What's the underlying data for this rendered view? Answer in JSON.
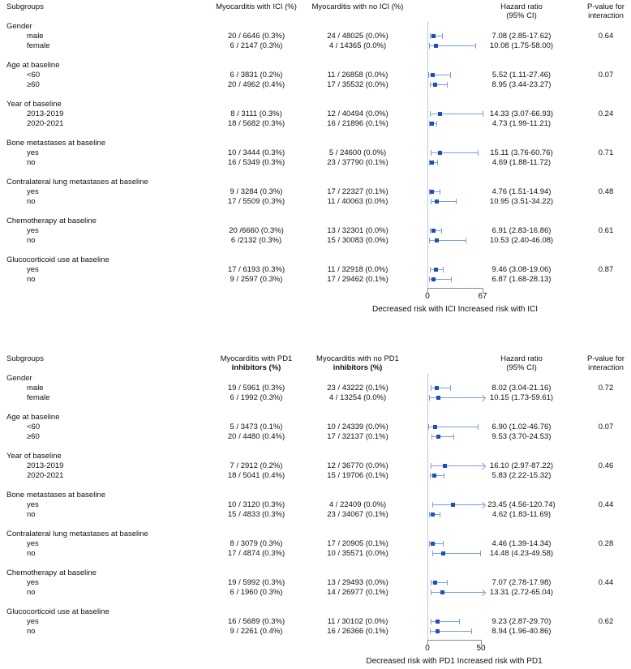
{
  "colors": {
    "marker_blue": "#1d4fb5",
    "whisker_blue": "#7b9fd9",
    "spine_gray": "#c4c8ce",
    "axis_gray": "#8a8a8a"
  },
  "chart_data": [
    {
      "type": "forest",
      "columns": {
        "subgroups": "Subgroups",
        "arm1": [
          "Myocarditis with ICI (%)"
        ],
        "arm2": [
          "Myocarditis with no ICI (%)"
        ],
        "hr": [
          "Hazard ratio",
          "(95% CI)"
        ],
        "p": [
          "P-value for",
          "interaction"
        ]
      },
      "axis": {
        "min": 0,
        "max": 67,
        "ticks": [
          0,
          67
        ],
        "tick_labels": [
          "0",
          "67"
        ],
        "caption": "Decreased risk with ICI Increased risk with ICI"
      },
      "groups": [
        {
          "label": "Gender",
          "rows": [
            {
              "label": "male",
              "arm1": "20 / 6646 (0.3%)",
              "arm2": "24 / 48025 (0.0%)",
              "hr": 7.08,
              "lo": 2.85,
              "hi": 17.62,
              "hr_text": "7.08 (2.85-17.62)",
              "p": "0.64"
            },
            {
              "label": "female",
              "arm1": "6 / 2147 (0.3%)",
              "arm2": "4 / 14365 (0.0%)",
              "hr": 10.08,
              "lo": 1.75,
              "hi": 58.0,
              "hr_text": "10.08 (1.75-58.00)",
              "p": ""
            }
          ]
        },
        {
          "label": "Age at baseline",
          "rows": [
            {
              "label": "<60",
              "arm1": "6 / 3831 (0.2%)",
              "arm2": "11 / 26858 (0.0%)",
              "hr": 5.52,
              "lo": 1.11,
              "hi": 27.46,
              "hr_text": "5.52 (1.11-27.46)",
              "p": "0.07"
            },
            {
              "label": "≥60",
              "arm1": "20 / 4962 (0.4%)",
              "arm2": "17 / 35532 (0.0%)",
              "hr": 8.95,
              "lo": 3.44,
              "hi": 23.27,
              "hr_text": "8.95 (3.44-23.27)",
              "p": ""
            }
          ]
        },
        {
          "label": "Year of baseline",
          "rows": [
            {
              "label": "2013-2019",
              "arm1": "8 / 3111 (0.3%)",
              "arm2": "12 / 40494 (0.0%)",
              "hr": 14.33,
              "lo": 3.07,
              "hi": 66.93,
              "hr_text": "14.33 (3.07-66.93)",
              "p": "0.24"
            },
            {
              "label": "2020-2021",
              "arm1": "18 / 5682 (0.3%)",
              "arm2": "16 / 21896 (0.1%)",
              "hr": 4.73,
              "lo": 1.99,
              "hi": 11.21,
              "hr_text": "4.73 (1.99-11.21)",
              "p": ""
            }
          ]
        },
        {
          "label": "Bone metastases at baseline",
          "rows": [
            {
              "label": "yes",
              "arm1": "10 / 3444 (0.3%)",
              "arm2": "5 / 24600 (0.0%)",
              "hr": 15.11,
              "lo": 3.76,
              "hi": 60.76,
              "hr_text": "15.11 (3.76-60.76)",
              "p": "0.71"
            },
            {
              "label": "no",
              "arm1": "16 / 5349 (0.3%)",
              "arm2": "23 / 37790 (0.1%)",
              "hr": 4.69,
              "lo": 1.88,
              "hi": 11.72,
              "hr_text": "4.69 (1.88-11.72)",
              "p": ""
            }
          ]
        },
        {
          "label": "Contralateral lung metastases at baseline",
          "rows": [
            {
              "label": "yes",
              "arm1": "9 / 3284 (0.3%)",
              "arm2": "17 / 22327 (0.1%)",
              "hr": 4.76,
              "lo": 1.51,
              "hi": 14.94,
              "hr_text": "4.76 (1.51-14.94)",
              "p": "0.48"
            },
            {
              "label": "no",
              "arm1": "17 / 5509 (0.3%)",
              "arm2": "11 / 40063 (0.0%)",
              "hr": 10.95,
              "lo": 3.51,
              "hi": 34.22,
              "hr_text": "10.95 (3.51-34.22)",
              "p": ""
            }
          ]
        },
        {
          "label": "Chemotherapy at baseline",
          "rows": [
            {
              "label": "yes",
              "arm1": "20 /6660 (0.3%)",
              "arm2": "13 / 32301 (0.0%)",
              "hr": 6.91,
              "lo": 2.83,
              "hi": 16.86,
              "hr_text": "6.91 (2.83-16.86)",
              "p": "0.61"
            },
            {
              "label": "no",
              "arm1": "6 /2132 (0.3%)",
              "arm2": "15 / 30083 (0.0%)",
              "hr": 10.53,
              "lo": 2.4,
              "hi": 46.08,
              "hr_text": "10.53 (2.40-46.08)",
              "p": ""
            }
          ]
        },
        {
          "label": "Glucocorticoid use at baseline",
          "rows": [
            {
              "label": "yes",
              "arm1": "17 / 6193 (0.3%)",
              "arm2": "11 / 32918 (0.0%)",
              "hr": 9.46,
              "lo": 3.08,
              "hi": 19.06,
              "hr_text": "9.46 (3.08-19.06)",
              "p": "0.87"
            },
            {
              "label": "no",
              "arm1": "9 / 2597 (0.3%)",
              "arm2": "17 / 29462 (0.1%)",
              "hr": 6.87,
              "lo": 1.68,
              "hi": 28.13,
              "hr_text": "6.87 (1.68-28.13)",
              "p": ""
            }
          ]
        }
      ]
    },
    {
      "type": "forest",
      "columns": {
        "subgroups": "Subgroups",
        "arm1": [
          "Myocarditis with PD1",
          "inhibitors (%)"
        ],
        "arm2": [
          "Myocarditis with no PD1",
          "inhibitors (%)"
        ],
        "hr": [
          "Hazard ratio",
          "(95% CI)"
        ],
        "p": [
          "P-value for",
          "interaction"
        ]
      },
      "axis": {
        "min": 0,
        "max": 50,
        "ticks": [
          0,
          50
        ],
        "tick_labels": [
          "0",
          "50"
        ],
        "caption": "Decreased risk with PD1 Increased risk with PD1"
      },
      "groups": [
        {
          "label": "Gender",
          "rows": [
            {
              "label": "male",
              "arm1": "19 / 5961 (0.3%)",
              "arm2": "23 / 43222 (0.1%)",
              "hr": 8.02,
              "lo": 3.04,
              "hi": 21.16,
              "hr_text": "8.02 (3.04-21.16)",
              "p": "0.72"
            },
            {
              "label": "female",
              "arm1": "6 / 1992 (0.3%)",
              "arm2": "4 / 13254 (0.0%)",
              "hr": 10.15,
              "lo": 1.73,
              "hi": 59.61,
              "hr_text": "10.15 (1.73-59.61)",
              "p": ""
            }
          ]
        },
        {
          "label": "Age at baseline",
          "rows": [
            {
              "label": "<60",
              "arm1": "5 / 3473 (0.1%)",
              "arm2": "10 / 24339 (0.0%)",
              "hr": 6.9,
              "lo": 1.02,
              "hi": 46.76,
              "hr_text": "6.90 (1.02-46.76)",
              "p": "0.07"
            },
            {
              "label": "≥60",
              "arm1": "20 / 4480 (0.4%)",
              "arm2": "17 / 32137 (0.1%)",
              "hr": 9.53,
              "lo": 3.7,
              "hi": 24.53,
              "hr_text": "9.53 (3.70-24.53)",
              "p": ""
            }
          ]
        },
        {
          "label": "Year of baseline",
          "rows": [
            {
              "label": "2013-2019",
              "arm1": "7 / 2912 (0.2%)",
              "arm2": "12 / 36770 (0.0%)",
              "hr": 16.1,
              "lo": 2.97,
              "hi": 87.22,
              "hr_text": "16.10 (2.97-87.22)",
              "p": "0.46"
            },
            {
              "label": "2020-2021",
              "arm1": "18 / 5041 (0.4%)",
              "arm2": "15 / 19706 (0.1%)",
              "hr": 5.83,
              "lo": 2.22,
              "hi": 15.32,
              "hr_text": "5.83 (2.22-15.32)",
              "p": ""
            }
          ]
        },
        {
          "label": "Bone metastases at baseline",
          "rows": [
            {
              "label": "yes",
              "arm1": "10 / 3120 (0.3%)",
              "arm2": "4 / 22409 (0.0%)",
              "hr": 23.45,
              "lo": 4.56,
              "hi": 120.74,
              "hr_text": "23.45 (4.56-120.74)",
              "p": "0.44"
            },
            {
              "label": "no",
              "arm1": "15 / 4833 (0.3%)",
              "arm2": "23 / 34067 (0.1%)",
              "hr": 4.62,
              "lo": 1.83,
              "hi": 11.69,
              "hr_text": "4.62 (1.83-11.69)",
              "p": ""
            }
          ]
        },
        {
          "label": "Contralateral lung metastases at baseline",
          "rows": [
            {
              "label": "yes",
              "arm1": "8 / 3079 (0.3%)",
              "arm2": "17 / 20905 (0.1%)",
              "hr": 4.46,
              "lo": 1.39,
              "hi": 14.34,
              "hr_text": "4.46 (1.39-14.34)",
              "p": "0.28"
            },
            {
              "label": "no",
              "arm1": "17 / 4874 (0.3%)",
              "arm2": "10 / 35571 (0.0%)",
              "hr": 14.48,
              "lo": 4.23,
              "hi": 49.58,
              "hr_text": "14.48 (4.23-49.58)",
              "p": ""
            }
          ]
        },
        {
          "label": "Chemotherapy at baseline",
          "rows": [
            {
              "label": "yes",
              "arm1": "19 / 5992 (0.3%)",
              "arm2": "13 / 29493 (0.0%)",
              "hr": 7.07,
              "lo": 2.78,
              "hi": 17.98,
              "hr_text": "7.07 (2.78-17.98)",
              "p": "0.44"
            },
            {
              "label": "no",
              "arm1": "6 / 1960 (0.3%)",
              "arm2": "14 / 26977 (0.1%)",
              "hr": 13.31,
              "lo": 2.72,
              "hi": 65.04,
              "hr_text": "13.31 (2.72-65.04)",
              "p": ""
            }
          ]
        },
        {
          "label": "Glucocorticoid use at baseline",
          "rows": [
            {
              "label": "yes",
              "arm1": "16 / 5689 (0.3%)",
              "arm2": "11 / 30102 (0.0%)",
              "hr": 9.23,
              "lo": 2.87,
              "hi": 29.7,
              "hr_text": "9.23 (2.87-29.70)",
              "p": "0.62"
            },
            {
              "label": "no",
              "arm1": "9 / 2261 (0.4%)",
              "arm2": "16 / 26366 (0.1%)",
              "hr": 8.94,
              "lo": 1.96,
              "hi": 40.86,
              "hr_text": "8.94 (1.96-40.86)",
              "p": ""
            }
          ]
        }
      ]
    }
  ]
}
